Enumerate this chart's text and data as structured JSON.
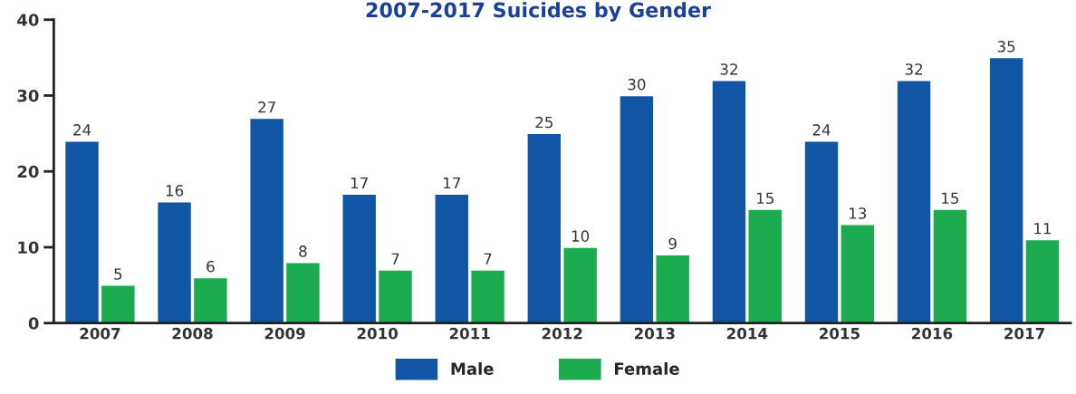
{
  "chart_data": {
    "type": "bar",
    "title": "2007-2017 Suicides by Gender",
    "categories": [
      "2007",
      "2008",
      "2009",
      "2010",
      "2011",
      "2012",
      "2013",
      "2014",
      "2015",
      "2016",
      "2017"
    ],
    "series": [
      {
        "name": "Male",
        "color": "#1155a5",
        "values": [
          24,
          16,
          27,
          17,
          17,
          25,
          30,
          32,
          24,
          32,
          35
        ]
      },
      {
        "name": "Female",
        "color": "#1dab4f",
        "values": [
          5,
          6,
          8,
          7,
          7,
          10,
          9,
          15,
          13,
          15,
          11
        ]
      }
    ],
    "ylim": [
      0,
      40
    ],
    "yticks": [
      0,
      10,
      20,
      30,
      40
    ],
    "grid": false,
    "legend": "bottom",
    "data_labels": true
  }
}
